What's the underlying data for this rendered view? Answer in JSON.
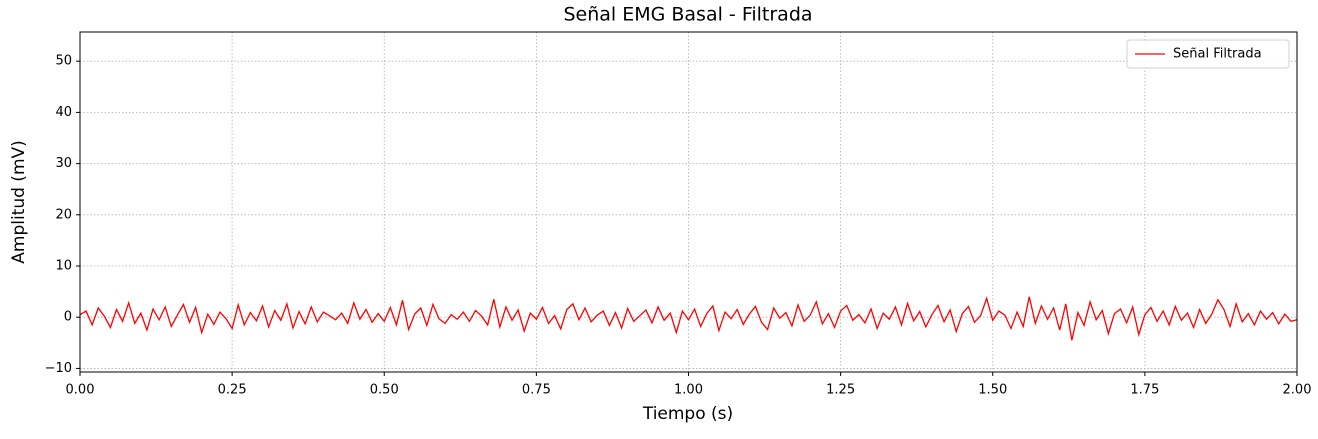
{
  "chart_data": {
    "type": "line",
    "title": "Señal EMG Basal - Filtrada",
    "x_label": "Tiempo (s)",
    "y_label": "Amplitud (mV)",
    "x": [
      0.0,
      0.01,
      0.02,
      0.03,
      0.04,
      0.05,
      0.06,
      0.07,
      0.08,
      0.09,
      0.1,
      0.11,
      0.12,
      0.13,
      0.14,
      0.15,
      0.16,
      0.17,
      0.18,
      0.19,
      0.2,
      0.21,
      0.22,
      0.23,
      0.24,
      0.25,
      0.26,
      0.27,
      0.28,
      0.29,
      0.3,
      0.31,
      0.32,
      0.33,
      0.34,
      0.35,
      0.36,
      0.37,
      0.38,
      0.39,
      0.4,
      0.41,
      0.42,
      0.43,
      0.44,
      0.45,
      0.46,
      0.47,
      0.48,
      0.49,
      0.5,
      0.51,
      0.52,
      0.53,
      0.54,
      0.55,
      0.56,
      0.57,
      0.58,
      0.59,
      0.6,
      0.61,
      0.62,
      0.63,
      0.64,
      0.65,
      0.66,
      0.67,
      0.68,
      0.69,
      0.7,
      0.71,
      0.72,
      0.73,
      0.74,
      0.75,
      0.76,
      0.77,
      0.78,
      0.79,
      0.8,
      0.81,
      0.82,
      0.83,
      0.84,
      0.85,
      0.86,
      0.87,
      0.88,
      0.89,
      0.9,
      0.91,
      0.92,
      0.93,
      0.94,
      0.95,
      0.96,
      0.97,
      0.98,
      0.99,
      1.0,
      1.01,
      1.02,
      1.03,
      1.04,
      1.05,
      1.06,
      1.07,
      1.08,
      1.09,
      1.1,
      1.11,
      1.12,
      1.13,
      1.14,
      1.15,
      1.16,
      1.17,
      1.18,
      1.19,
      1.2,
      1.21,
      1.22,
      1.23,
      1.24,
      1.25,
      1.26,
      1.27,
      1.28,
      1.29,
      1.3,
      1.31,
      1.32,
      1.33,
      1.34,
      1.35,
      1.36,
      1.37,
      1.38,
      1.39,
      1.4,
      1.41,
      1.42,
      1.43,
      1.44,
      1.45,
      1.46,
      1.47,
      1.48,
      1.49,
      1.5,
      1.51,
      1.52,
      1.53,
      1.54,
      1.55,
      1.56,
      1.57,
      1.58,
      1.59,
      1.6,
      1.61,
      1.62,
      1.63,
      1.64,
      1.65,
      1.66,
      1.67,
      1.68,
      1.69,
      1.7,
      1.71,
      1.72,
      1.73,
      1.74,
      1.75,
      1.76,
      1.77,
      1.78,
      1.79,
      1.8,
      1.81,
      1.82,
      1.83,
      1.84,
      1.85,
      1.86,
      1.87,
      1.88,
      1.89,
      1.9,
      1.91,
      1.92,
      1.93,
      1.94,
      1.95,
      1.96,
      1.97,
      1.98,
      1.99,
      2.0
    ],
    "series": [
      {
        "name": "Señal Filtrada",
        "color": "#ff0000",
        "values": [
          0.5,
          1.2,
          -1.5,
          1.8,
          0.2,
          -2.0,
          1.5,
          -0.8,
          2.8,
          -1.2,
          0.8,
          -2.5,
          1.6,
          -0.5,
          2.0,
          -1.8,
          0.4,
          2.5,
          -1.0,
          1.9,
          -3.0,
          0.6,
          -1.4,
          1.0,
          -0.3,
          -2.2,
          2.4,
          -1.5,
          0.9,
          -0.7,
          2.2,
          -1.9,
          1.3,
          -0.6,
          2.6,
          -2.1,
          1.1,
          -1.3,
          2.0,
          -0.9,
          1.0,
          0.3,
          -0.5,
          0.8,
          -1.2,
          2.8,
          -0.4,
          1.5,
          -1.0,
          0.7,
          -0.8,
          1.9,
          -1.5,
          3.3,
          -2.4,
          0.6,
          1.8,
          -1.6,
          2.5,
          -0.3,
          -1.2,
          0.5,
          -0.4,
          1.0,
          -0.8,
          1.3,
          0.2,
          -1.5,
          3.5,
          -1.9,
          2.0,
          -0.6,
          1.4,
          -2.7,
          0.8,
          -0.4,
          1.9,
          -1.2,
          0.3,
          -2.3,
          1.5,
          2.6,
          -0.5,
          1.8,
          -0.9,
          0.4,
          1.2,
          -1.6,
          0.9,
          -2.1,
          1.7,
          -0.8,
          0.3,
          1.4,
          -1.1,
          2.0,
          -0.6,
          0.8,
          -3.0,
          1.2,
          -0.5,
          1.6,
          -1.8,
          0.7,
          2.2,
          -2.6,
          1.0,
          -0.3,
          1.5,
          -1.4,
          0.6,
          2.1,
          -1.0,
          -2.4,
          1.8,
          -0.2,
          0.9,
          -1.7,
          2.4,
          -0.8,
          0.4,
          3.0,
          -1.3,
          0.7,
          -2.0,
          1.2,
          2.3,
          -0.6,
          0.5,
          -1.1,
          1.6,
          -2.2,
          0.8,
          -0.4,
          2.0,
          -1.5,
          2.7,
          -0.7,
          1.1,
          -1.9,
          0.5,
          2.3,
          -0.9,
          1.4,
          -2.8,
          0.7,
          2.1,
          -1.0,
          0.3,
          3.7,
          -0.6,
          1.2,
          0.4,
          -2.2,
          1.0,
          -1.8,
          4.0,
          -1.2,
          2.2,
          -0.4,
          1.8,
          -2.5,
          2.6,
          -4.5,
          0.9,
          -1.6,
          3.0,
          -0.5,
          1.3,
          -3.2,
          0.7,
          1.6,
          -1.1,
          2.0,
          -3.4,
          0.5,
          1.9,
          -0.8,
          1.2,
          -1.5,
          2.1,
          -0.6,
          0.8,
          -2.0,
          1.5,
          -1.2,
          0.6,
          3.4,
          1.5,
          -1.8,
          2.6,
          -0.9,
          0.7,
          -1.5,
          1.2,
          -0.4,
          0.9,
          -1.3,
          0.6,
          -0.8,
          -0.5
        ]
      }
    ],
    "xlim": [
      0,
      2
    ],
    "ylim": [
      -10.7,
      55.7
    ],
    "xticks": [
      {
        "value": 0,
        "label": "0.00"
      },
      {
        "value": 0.25,
        "label": "0.25"
      },
      {
        "value": 0.5,
        "label": "0.50"
      },
      {
        "value": 0.75,
        "label": "0.75"
      },
      {
        "value": 1,
        "label": "1.00"
      },
      {
        "value": 1.25,
        "label": "1.25"
      },
      {
        "value": 1.5,
        "label": "1.50"
      },
      {
        "value": 1.75,
        "label": "1.75"
      },
      {
        "value": 2,
        "label": "2.00"
      }
    ],
    "yticks": [
      {
        "value": -10,
        "label": "−10"
      },
      0,
      10,
      20,
      30,
      40,
      50
    ],
    "grid": true,
    "legend": "upper right"
  }
}
